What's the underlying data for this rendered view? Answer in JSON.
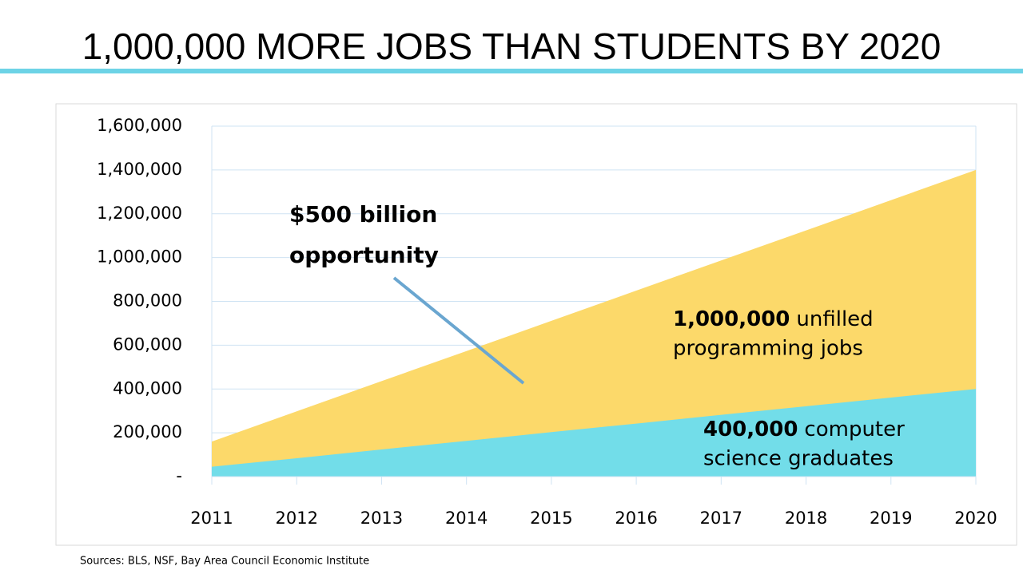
{
  "chart_data": {
    "type": "area",
    "title": "1,000,000 MORE JOBS THAN STUDENTS BY 2020",
    "categories": [
      "2011",
      "2012",
      "2013",
      "2014",
      "2015",
      "2016",
      "2017",
      "2018",
      "2019",
      "2020"
    ],
    "series": [
      {
        "color": "#fcd96a",
        "values": [
          160000,
          298000,
          436000,
          573000,
          711000,
          849000,
          987000,
          1124000,
          1262000,
          1400000
        ]
      },
      {
        "color": "#72dde9",
        "values": [
          45000,
          84000,
          124000,
          163000,
          203000,
          242000,
          282000,
          321000,
          361000,
          400000
        ]
      }
    ],
    "ylim": [
      0,
      1600000
    ],
    "yticks": [
      {
        "value": 0,
        "label": "-"
      },
      {
        "value": 200000,
        "label": "200,000"
      },
      {
        "value": 400000,
        "label": "400,000"
      },
      {
        "value": 600000,
        "label": "600,000"
      },
      {
        "value": 800000,
        "label": "800,000"
      },
      {
        "value": 1000000,
        "label": "1,000,000"
      },
      {
        "value": 1200000,
        "label": "1,200,000"
      },
      {
        "value": 1400000,
        "label": "1,400,000"
      },
      {
        "value": 1600000,
        "label": "1,600,000"
      }
    ],
    "grid": true,
    "annotations": [
      {
        "lines": [
          "$500 billion",
          "opportunity"
        ]
      },
      {
        "bold": "1,000,000",
        "lines": [
          "unfilled",
          "programming jobs"
        ]
      },
      {
        "bold": "400,000",
        "lines": [
          "computer",
          "science graduates"
        ]
      }
    ],
    "source": "Sources: BLS, NSF, Bay Area Council Economic Institute"
  }
}
